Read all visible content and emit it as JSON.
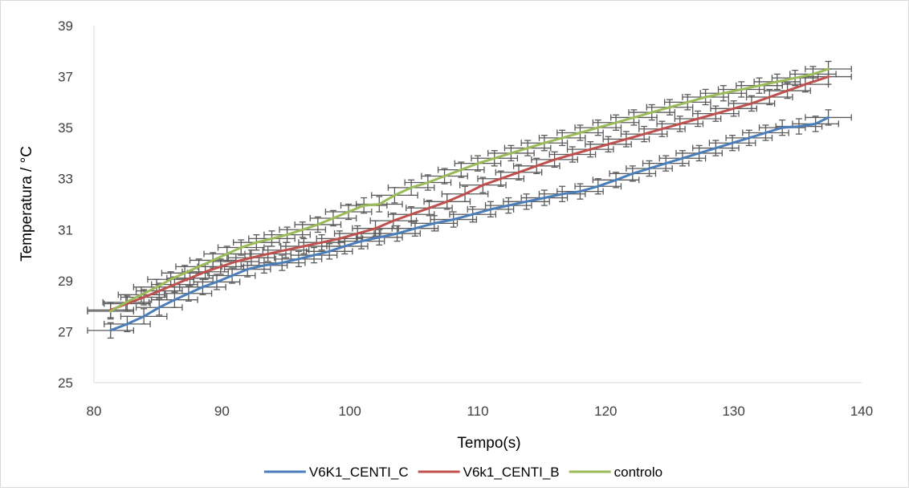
{
  "chart_data": {
    "type": "line",
    "title": "",
    "xlabel": "Tempo(s)",
    "ylabel": "Temperatura / °C",
    "xlim": [
      80,
      140
    ],
    "ylim": [
      25,
      39
    ],
    "x_ticks": [
      80,
      90,
      100,
      110,
      120,
      130,
      140
    ],
    "y_ticks": [
      25,
      27,
      29,
      31,
      33,
      35,
      37,
      39
    ],
    "x_tick_labels": [
      "80",
      "90",
      "100",
      "110",
      "120",
      "130",
      "140"
    ],
    "y_tick_labels": [
      "25",
      "27",
      "29",
      "31",
      "33",
      "35",
      "37",
      "39"
    ],
    "grid": false,
    "legend_position": "bottom",
    "error_bars": {
      "x": 1.8,
      "y": 0.3,
      "color": "#595959"
    },
    "series": [
      {
        "name": "V6K1_CENTI_C",
        "color": "#4A7EBB",
        "points": [
          [
            81.3,
            27.05
          ],
          [
            82.6,
            27.3
          ],
          [
            83.9,
            27.6
          ],
          [
            85.1,
            27.95
          ],
          [
            86.3,
            28.25
          ],
          [
            87.4,
            28.5
          ],
          [
            88.5,
            28.75
          ],
          [
            89.6,
            28.95
          ],
          [
            90.8,
            29.2
          ],
          [
            92.0,
            29.45
          ],
          [
            93.3,
            29.6
          ],
          [
            94.7,
            29.7
          ],
          [
            96.0,
            29.85
          ],
          [
            97.2,
            30.0
          ],
          [
            98.4,
            30.15
          ],
          [
            99.6,
            30.35
          ],
          [
            100.9,
            30.55
          ],
          [
            102.3,
            30.7
          ],
          [
            103.7,
            30.85
          ],
          [
            105.1,
            31.05
          ],
          [
            106.6,
            31.25
          ],
          [
            108.1,
            31.4
          ],
          [
            109.6,
            31.6
          ],
          [
            111.0,
            31.8
          ],
          [
            112.4,
            31.95
          ],
          [
            113.8,
            32.1
          ],
          [
            115.2,
            32.25
          ],
          [
            116.6,
            32.4
          ],
          [
            118.0,
            32.5
          ],
          [
            119.4,
            32.7
          ],
          [
            120.8,
            32.95
          ],
          [
            122.1,
            33.2
          ],
          [
            123.4,
            33.4
          ],
          [
            124.7,
            33.6
          ],
          [
            126.0,
            33.8
          ],
          [
            127.3,
            34.0
          ],
          [
            128.6,
            34.2
          ],
          [
            129.9,
            34.4
          ],
          [
            131.2,
            34.6
          ],
          [
            132.5,
            34.8
          ],
          [
            133.8,
            35.0
          ],
          [
            135.1,
            35.05
          ],
          [
            136.4,
            35.15
          ],
          [
            137.4,
            35.4
          ]
        ]
      },
      {
        "name": "V6k1_CENTI_B",
        "color": "#C0504D",
        "points": [
          [
            81.3,
            27.85
          ],
          [
            82.6,
            28.1
          ],
          [
            83.9,
            28.35
          ],
          [
            85.1,
            28.6
          ],
          [
            86.3,
            28.85
          ],
          [
            87.5,
            29.1
          ],
          [
            88.7,
            29.35
          ],
          [
            89.9,
            29.55
          ],
          [
            91.1,
            29.75
          ],
          [
            92.3,
            29.9
          ],
          [
            93.6,
            30.05
          ],
          [
            95.0,
            30.2
          ],
          [
            96.4,
            30.35
          ],
          [
            97.8,
            30.5
          ],
          [
            99.2,
            30.65
          ],
          [
            100.6,
            30.85
          ],
          [
            102.0,
            31.05
          ],
          [
            103.4,
            31.35
          ],
          [
            104.8,
            31.6
          ],
          [
            106.2,
            31.85
          ],
          [
            107.6,
            32.1
          ],
          [
            109.0,
            32.4
          ],
          [
            110.4,
            32.75
          ],
          [
            111.8,
            33.0
          ],
          [
            113.2,
            33.25
          ],
          [
            114.6,
            33.5
          ],
          [
            116.0,
            33.75
          ],
          [
            117.4,
            33.95
          ],
          [
            118.8,
            34.15
          ],
          [
            120.2,
            34.35
          ],
          [
            121.6,
            34.55
          ],
          [
            123.0,
            34.75
          ],
          [
            124.4,
            34.95
          ],
          [
            125.8,
            35.15
          ],
          [
            127.2,
            35.35
          ],
          [
            128.6,
            35.55
          ],
          [
            130.0,
            35.75
          ],
          [
            131.4,
            35.95
          ],
          [
            132.8,
            36.2
          ],
          [
            134.2,
            36.45
          ],
          [
            135.6,
            36.7
          ],
          [
            137.4,
            37.0
          ]
        ]
      },
      {
        "name": "controlo",
        "color": "#9BBB59",
        "points": [
          [
            81.3,
            27.8
          ],
          [
            82.5,
            28.15
          ],
          [
            83.7,
            28.45
          ],
          [
            84.9,
            28.75
          ],
          [
            86.0,
            29.05
          ],
          [
            87.1,
            29.3
          ],
          [
            88.2,
            29.55
          ],
          [
            89.3,
            29.8
          ],
          [
            90.4,
            30.05
          ],
          [
            91.5,
            30.3
          ],
          [
            92.7,
            30.5
          ],
          [
            93.9,
            30.65
          ],
          [
            95.1,
            30.8
          ],
          [
            96.3,
            31.0
          ],
          [
            97.5,
            31.2
          ],
          [
            98.7,
            31.45
          ],
          [
            99.9,
            31.7
          ],
          [
            101.1,
            31.95
          ],
          [
            102.3,
            32.0
          ],
          [
            103.5,
            32.35
          ],
          [
            104.8,
            32.65
          ],
          [
            106.1,
            32.85
          ],
          [
            107.4,
            33.1
          ],
          [
            108.7,
            33.35
          ],
          [
            110.0,
            33.6
          ],
          [
            111.3,
            33.8
          ],
          [
            112.6,
            34.0
          ],
          [
            113.9,
            34.2
          ],
          [
            115.2,
            34.4
          ],
          [
            116.6,
            34.6
          ],
          [
            118.0,
            34.8
          ],
          [
            119.4,
            35.0
          ],
          [
            120.8,
            35.2
          ],
          [
            122.2,
            35.4
          ],
          [
            123.6,
            35.6
          ],
          [
            125.0,
            35.8
          ],
          [
            126.4,
            36.0
          ],
          [
            127.8,
            36.2
          ],
          [
            129.2,
            36.35
          ],
          [
            130.6,
            36.5
          ],
          [
            132.0,
            36.65
          ],
          [
            133.4,
            36.8
          ],
          [
            134.8,
            36.95
          ],
          [
            136.2,
            37.1
          ],
          [
            137.4,
            37.3
          ]
        ]
      }
    ]
  }
}
